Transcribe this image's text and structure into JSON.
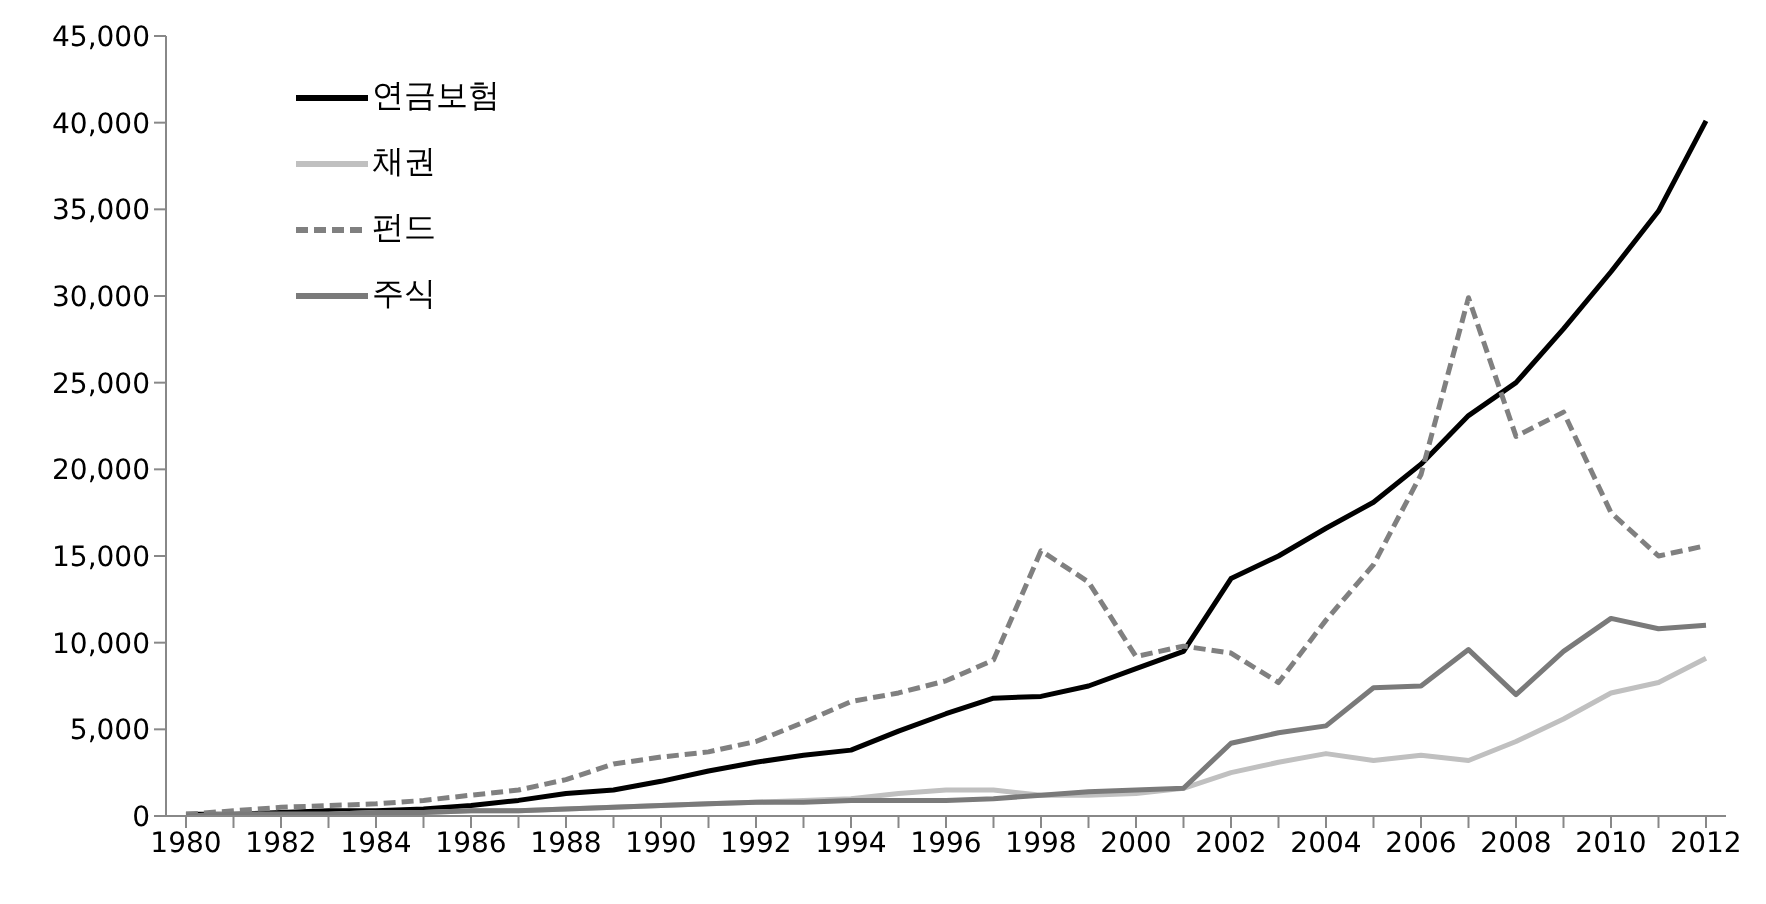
{
  "chart_data": {
    "type": "line",
    "categories": [
      "1980",
      null,
      "1982",
      null,
      "1984",
      null,
      "1986",
      null,
      "1988",
      null,
      "1990",
      null,
      "1992",
      null,
      "1994",
      null,
      "1996",
      null,
      "1998",
      null,
      "2000",
      null,
      "2002",
      null,
      "2004",
      null,
      "2006",
      null,
      "2008",
      null,
      "2010",
      null,
      "2012"
    ],
    "series": [
      {
        "name": "연금보험",
        "color": "#000000",
        "line_style": "solid",
        "values": [
          100,
          100,
          200,
          300,
          300,
          400,
          600,
          900,
          1300,
          1500,
          2000,
          2600,
          3100,
          3500,
          3800,
          4900,
          5900,
          6800,
          6900,
          7500,
          8500,
          9500,
          13700,
          15000,
          16600,
          18100,
          20300,
          23100,
          25000,
          28100,
          31400,
          34900,
          40100
        ]
      },
      {
        "name": "채권",
        "color": "#c0c0c0",
        "line_style": "solid",
        "values": [
          0,
          100,
          100,
          100,
          200,
          200,
          300,
          300,
          400,
          500,
          600,
          700,
          800,
          900,
          1000,
          1300,
          1500,
          1500,
          1200,
          1200,
          1300,
          1600,
          2500,
          3100,
          3600,
          3200,
          3500,
          3200,
          4300,
          5600,
          7100,
          7700,
          9100
        ]
      },
      {
        "name": "펀드",
        "color": "#808080",
        "line_style": "dashed",
        "values": [
          100,
          300,
          500,
          600,
          700,
          900,
          1200,
          1500,
          2100,
          3000,
          3400,
          3700,
          4300,
          5400,
          6600,
          7100,
          7800,
          9000,
          15300,
          13500,
          9200,
          9800,
          9400,
          7700,
          11300,
          14500,
          19700,
          29900,
          21900,
          23300,
          17500,
          15000,
          15600
        ]
      },
      {
        "name": "주식",
        "color": "#7a7a7a",
        "line_style": "solid",
        "values": [
          0,
          100,
          100,
          100,
          200,
          200,
          300,
          300,
          400,
          500,
          600,
          700,
          800,
          800,
          900,
          900,
          900,
          1000,
          1200,
          1400,
          1500,
          1600,
          4200,
          4800,
          5200,
          7400,
          7500,
          9600,
          7000,
          9500,
          11400,
          10800,
          11000
        ]
      }
    ],
    "ylim": [
      0,
      45000
    ],
    "yticks": [
      0,
      {
        "value": 5000,
        "label": "5,000"
      },
      {
        "value": 10000,
        "label": "10,000"
      },
      {
        "value": 15000,
        "label": "15,000"
      },
      {
        "value": 20000,
        "label": "20,000"
      },
      {
        "value": 25000,
        "label": "25,000"
      },
      {
        "value": 30000,
        "label": "30,000"
      },
      {
        "value": 35000,
        "label": "35,000"
      },
      {
        "value": 40000,
        "label": "40,000"
      },
      {
        "value": 45000,
        "label": "45,000"
      }
    ],
    "grid": false,
    "legend": "top left",
    "marker": "none"
  }
}
